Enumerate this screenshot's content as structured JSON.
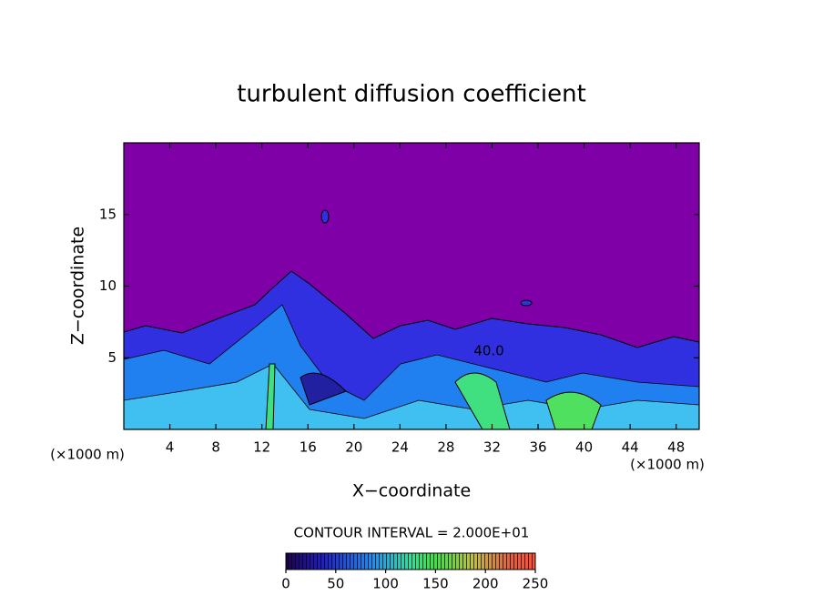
{
  "chart_data": {
    "type": "contour",
    "title": "turbulent diffusion coefficient",
    "x_label": "X−coordinate",
    "y_label": "Z−coordinate",
    "x_unit_label": "(×1000 m)",
    "y_unit_label": "(×1000 m)",
    "xlim": [
      0,
      50
    ],
    "xticks": [
      4,
      8,
      12,
      16,
      20,
      24,
      28,
      32,
      36,
      40,
      44,
      48
    ],
    "ylim": [
      0,
      20
    ],
    "yticks": [
      5,
      10,
      15
    ],
    "contour_label": "40.0",
    "contour_interval_label": "CONTOUR INTERVAL = 2.000E+01",
    "colorbar": {
      "lim": [
        0,
        250
      ],
      "ticks": [
        0,
        50,
        100,
        150,
        200,
        250
      ]
    }
  }
}
